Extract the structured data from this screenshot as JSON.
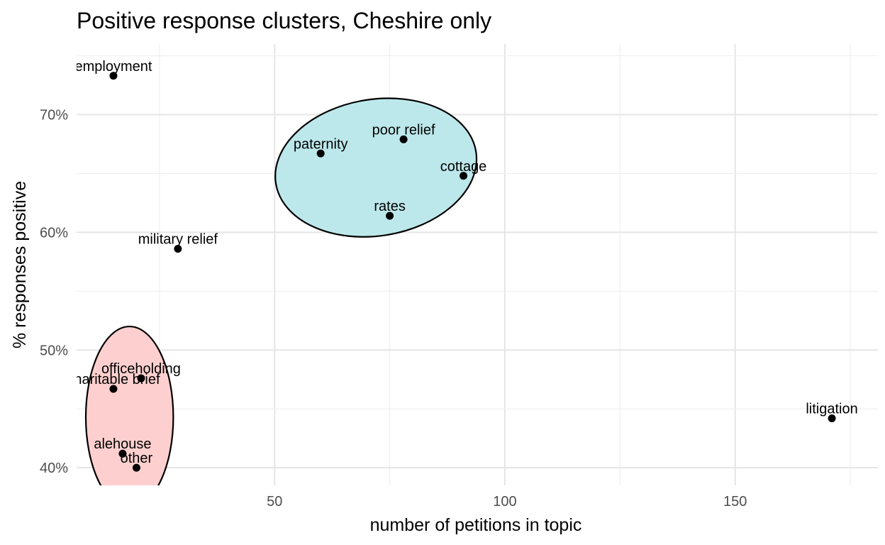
{
  "chart_data": {
    "type": "scatter",
    "title": "Positive response clusters, Cheshire only",
    "xlabel": "number of petitions in topic",
    "ylabel": "% responses positive",
    "xlim": [
      7,
      181
    ],
    "ylim": [
      0.385,
      0.76
    ],
    "x_ticks": [
      50,
      100,
      150
    ],
    "x_tick_labels": [
      "50",
      "100",
      "150"
    ],
    "y_ticks": [
      0.4,
      0.5,
      0.6,
      0.7
    ],
    "y_tick_labels": [
      "40%",
      "50%",
      "60%",
      "70%"
    ],
    "grid": true,
    "legend": "none",
    "points": [
      {
        "label": "employment",
        "x": 15,
        "y": 0.733
      },
      {
        "label": "military relief",
        "x": 29,
        "y": 0.586
      },
      {
        "label": "paternity",
        "x": 60,
        "y": 0.667
      },
      {
        "label": "poor relief",
        "x": 78,
        "y": 0.679
      },
      {
        "label": "cottage",
        "x": 91,
        "y": 0.648
      },
      {
        "label": "rates",
        "x": 75,
        "y": 0.614
      },
      {
        "label": "officeholding",
        "x": 21,
        "y": 0.476
      },
      {
        "label": "charitable brief",
        "x": 15,
        "y": 0.467
      },
      {
        "label": "alehouse",
        "x": 17,
        "y": 0.412
      },
      {
        "label": "other",
        "x": 20,
        "y": 0.4
      },
      {
        "label": "litigation",
        "x": 171,
        "y": 0.442
      }
    ],
    "clusters": [
      {
        "color": "#bde8eb",
        "cx": 72,
        "cy": 0.655,
        "rx": 22,
        "ry": 0.058,
        "angle": -9
      },
      {
        "color": "#fdd0cf",
        "cx": 18.5,
        "cy": 0.443,
        "rx": 9.5,
        "ry": 0.077,
        "angle": 0
      }
    ]
  }
}
